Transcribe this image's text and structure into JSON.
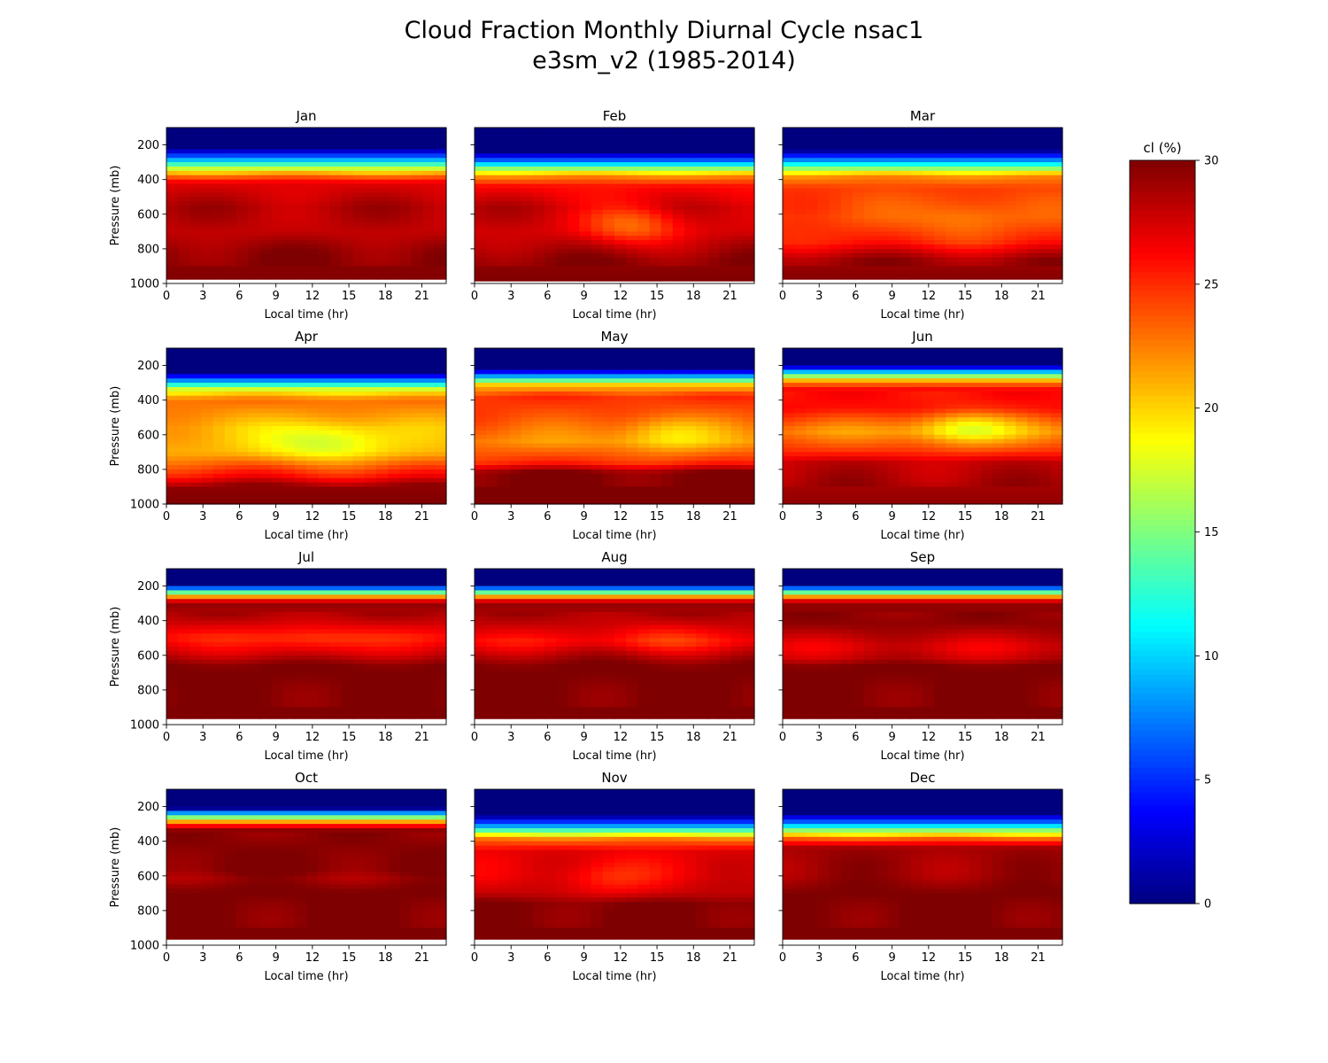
{
  "chart_data": {
    "type": "heatmap",
    "title": "Cloud Fraction Monthly Diurnal Cycle nsac1",
    "subtitle": "e3sm_v2 (1985-2014)",
    "xlabel": "Local time (hr)",
    "ylabel": "Pressure (mb)",
    "x_ticks": [
      0,
      3,
      6,
      9,
      12,
      15,
      18,
      21
    ],
    "xlim": [
      0,
      23
    ],
    "y_ticks": [
      200,
      400,
      600,
      800,
      1000
    ],
    "ylim": [
      1000,
      100
    ],
    "colorbar": {
      "label": "cl (%)",
      "range": [
        0,
        30
      ],
      "ticks": [
        0,
        5,
        10,
        15,
        20,
        25,
        30
      ],
      "colormap": "jet",
      "jet_colors": [
        "#00007f",
        "#0000ff",
        "#007fff",
        "#00ffff",
        "#7fff7f",
        "#ffff00",
        "#ff7f00",
        "#ff0000",
        "#7f0000"
      ]
    },
    "months": [
      {
        "name": "Jan",
        "level_profile": [
          [
            100,
            0
          ],
          [
            220,
            0
          ],
          [
            280,
            8
          ],
          [
            330,
            16
          ],
          [
            370,
            22
          ],
          [
            420,
            27
          ],
          [
            560,
            28.5
          ],
          [
            700,
            28
          ],
          [
            820,
            29.5
          ],
          [
            1000,
            30
          ]
        ],
        "surface_bottom": 975,
        "anomaly": null
      },
      {
        "name": "Feb",
        "level_profile": [
          [
            100,
            0
          ],
          [
            240,
            0
          ],
          [
            300,
            8
          ],
          [
            340,
            16
          ],
          [
            380,
            22
          ],
          [
            440,
            26
          ],
          [
            560,
            28
          ],
          [
            700,
            27.5
          ],
          [
            860,
            29.5
          ],
          [
            1000,
            30
          ]
        ],
        "surface_bottom": 985,
        "anomaly": {
          "center": [
            13,
            660
          ],
          "dt": 4,
          "dp": 120,
          "amount": 4.5
        }
      },
      {
        "name": "Mar",
        "level_profile": [
          [
            100,
            0
          ],
          [
            230,
            0
          ],
          [
            290,
            8
          ],
          [
            340,
            16
          ],
          [
            380,
            22
          ],
          [
            450,
            24.5
          ],
          [
            620,
            24
          ],
          [
            760,
            25.5
          ],
          [
            860,
            29
          ],
          [
            1000,
            30
          ]
        ],
        "surface_bottom": 975,
        "anomaly": {
          "center": [
            15,
            640
          ],
          "dt": 4,
          "dp": 130,
          "amount": 2
        }
      },
      {
        "name": "Apr",
        "level_profile": [
          [
            100,
            0
          ],
          [
            240,
            0
          ],
          [
            300,
            10
          ],
          [
            340,
            18
          ],
          [
            400,
            23
          ],
          [
            560,
            21
          ],
          [
            700,
            21
          ],
          [
            840,
            26
          ],
          [
            900,
            29.5
          ],
          [
            1000,
            30
          ]
        ],
        "surface_bottom": 1000,
        "anomaly": {
          "center": [
            13,
            640
          ],
          "dt": 5,
          "dp": 110,
          "amount": 4
        }
      },
      {
        "name": "May",
        "level_profile": [
          [
            100,
            0
          ],
          [
            220,
            0
          ],
          [
            270,
            10
          ],
          [
            310,
            20
          ],
          [
            380,
            25
          ],
          [
            500,
            24
          ],
          [
            640,
            22
          ],
          [
            760,
            25
          ],
          [
            820,
            30
          ],
          [
            1000,
            30
          ]
        ],
        "surface_bottom": 1000,
        "anomaly": {
          "center": [
            16,
            590
          ],
          "dt": 4,
          "dp": 110,
          "amount": 3.5
        }
      },
      {
        "name": "Jun",
        "level_profile": [
          [
            100,
            0
          ],
          [
            200,
            0
          ],
          [
            240,
            10
          ],
          [
            280,
            20
          ],
          [
            330,
            26
          ],
          [
            450,
            26
          ],
          [
            580,
            22
          ],
          [
            700,
            25
          ],
          [
            760,
            28
          ],
          [
            1000,
            29.5
          ]
        ],
        "surface_bottom": 1000,
        "anomaly": {
          "center": [
            15,
            560
          ],
          "dt": 4,
          "dp": 100,
          "amount": 5
        }
      },
      {
        "name": "Jul",
        "level_profile": [
          [
            100,
            0
          ],
          [
            190,
            0
          ],
          [
            230,
            12
          ],
          [
            270,
            24
          ],
          [
            300,
            29.5
          ],
          [
            400,
            28
          ],
          [
            500,
            25.5
          ],
          [
            600,
            28
          ],
          [
            660,
            30
          ],
          [
            1000,
            30
          ]
        ],
        "surface_bottom": 965,
        "anomaly": {
          "center": [
            12,
            520
          ],
          "dt": 4,
          "dp": 90,
          "amount": 1.5
        }
      },
      {
        "name": "Aug",
        "level_profile": [
          [
            100,
            0
          ],
          [
            190,
            0
          ],
          [
            230,
            12
          ],
          [
            270,
            24
          ],
          [
            300,
            29.5
          ],
          [
            420,
            28
          ],
          [
            520,
            26
          ],
          [
            620,
            29
          ],
          [
            660,
            30
          ],
          [
            1000,
            30
          ]
        ],
        "surface_bottom": 965,
        "anomaly": {
          "center": [
            15,
            500
          ],
          "dt": 4,
          "dp": 90,
          "amount": 1.5
        }
      },
      {
        "name": "Sep",
        "level_profile": [
          [
            100,
            0
          ],
          [
            190,
            0
          ],
          [
            230,
            12
          ],
          [
            270,
            24
          ],
          [
            300,
            29.5
          ],
          [
            420,
            29.5
          ],
          [
            550,
            27
          ],
          [
            620,
            28
          ],
          [
            660,
            30
          ],
          [
            1000,
            30
          ]
        ],
        "surface_bottom": 965,
        "anomaly": null
      },
      {
        "name": "Oct",
        "level_profile": [
          [
            100,
            0
          ],
          [
            210,
            0
          ],
          [
            250,
            12
          ],
          [
            290,
            22
          ],
          [
            330,
            29.5
          ],
          [
            560,
            30
          ],
          [
            620,
            29
          ],
          [
            680,
            30
          ],
          [
            1000,
            30
          ]
        ],
        "surface_bottom": 965,
        "anomaly": null
      },
      {
        "name": "Nov",
        "level_profile": [
          [
            100,
            0
          ],
          [
            250,
            0
          ],
          [
            310,
            8
          ],
          [
            350,
            16
          ],
          [
            390,
            23
          ],
          [
            460,
            27
          ],
          [
            600,
            27
          ],
          [
            700,
            28
          ],
          [
            760,
            30
          ],
          [
            1000,
            30
          ]
        ],
        "surface_bottom": 965,
        "anomaly": {
          "center": [
            11,
            620
          ],
          "dt": 4,
          "dp": 110,
          "amount": 2
        }
      },
      {
        "name": "Dec",
        "level_profile": [
          [
            100,
            0
          ],
          [
            240,
            0
          ],
          [
            300,
            8
          ],
          [
            340,
            16
          ],
          [
            390,
            24
          ],
          [
            440,
            29
          ],
          [
            600,
            29
          ],
          [
            700,
            30
          ],
          [
            1000,
            30
          ]
        ],
        "surface_bottom": 965,
        "anomaly": null
      }
    ]
  }
}
